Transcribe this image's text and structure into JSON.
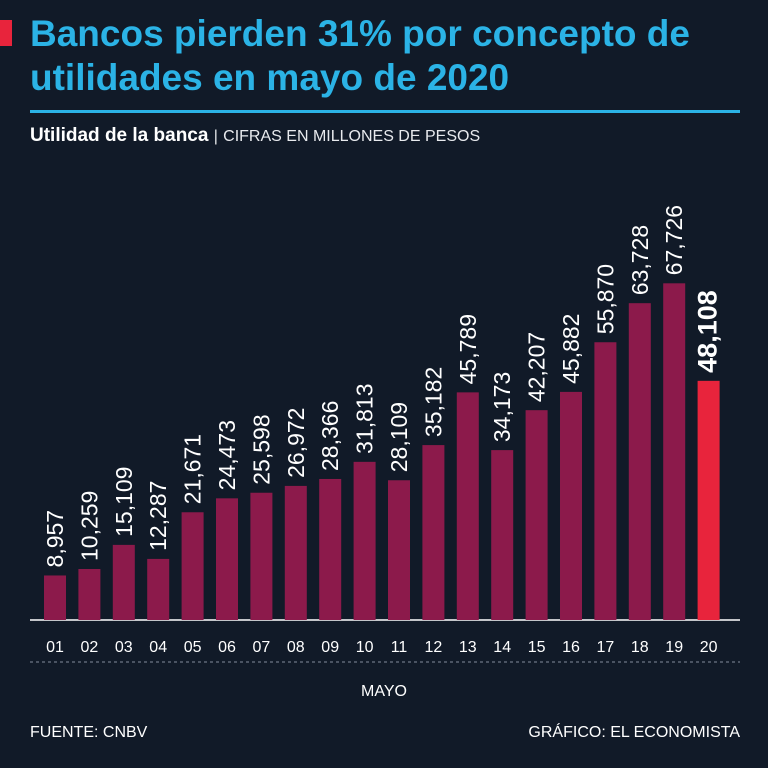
{
  "title": "Bancos pierden 31% por concepto de utilidades en mayo de 2020",
  "subtitle": {
    "main": "Utilidad de la banca",
    "separator": "|",
    "units": "CIFRAS EN MILLONES DE PESOS"
  },
  "footer": {
    "source": "FUENTE: CNBV",
    "credit": "GRÁFICO: EL ECONOMISTA"
  },
  "colors": {
    "bar": "#8c1a4b",
    "highlight": "#e8243c",
    "title": "#2bb3e6",
    "background": "#111a28"
  },
  "chart_data": {
    "type": "bar",
    "title": "Utilidad de la banca",
    "xlabel": "MAYO",
    "ylabel": "CIFRAS EN MILLONES DE PESOS",
    "categories": [
      "01",
      "02",
      "03",
      "04",
      "05",
      "06",
      "07",
      "08",
      "09",
      "10",
      "11",
      "12",
      "13",
      "14",
      "15",
      "16",
      "17",
      "18",
      "19",
      "20"
    ],
    "values": [
      8957,
      10259,
      15109,
      12287,
      21671,
      24473,
      25598,
      26972,
      28366,
      31813,
      28109,
      35182,
      45789,
      34173,
      42207,
      45882,
      55870,
      63728,
      67726,
      48108
    ],
    "labels": [
      "8,957",
      "10,259",
      "15,109",
      "12,287",
      "21,671",
      "24,473",
      "25,598",
      "26,972",
      "28,366",
      "31,813",
      "28,109",
      "35,182",
      "45,789",
      "34,173",
      "42,207",
      "45,882",
      "55,870",
      "63,728",
      "67,726",
      "48,108"
    ],
    "highlight_index": 19,
    "ylim": [
      0,
      70000
    ]
  }
}
